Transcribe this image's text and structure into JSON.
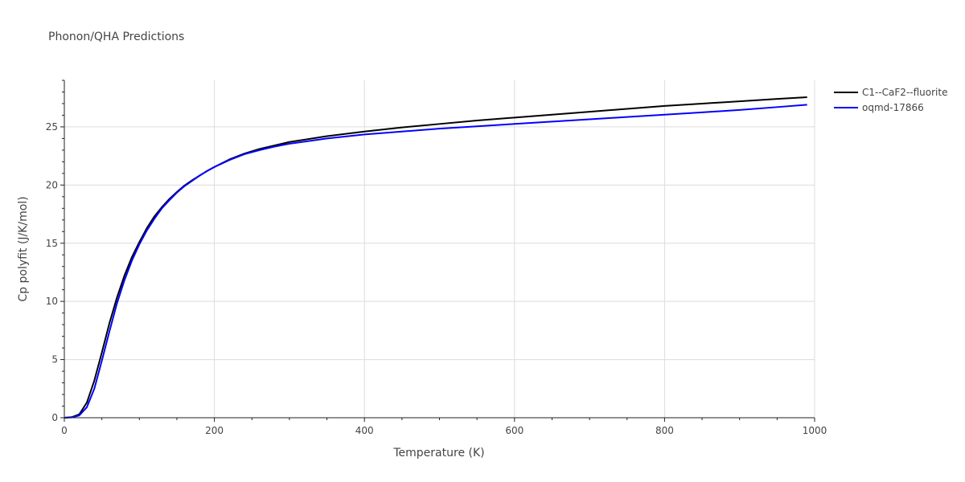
{
  "chart_data": {
    "type": "line",
    "title": "Phonon/QHA Predictions",
    "xlabel": "Temperature (K)",
    "ylabel": "Cp polyfit (J/K/mol)",
    "xlim": [
      0,
      1000
    ],
    "ylim": [
      0,
      29
    ],
    "xticks": [
      0,
      200,
      400,
      600,
      800,
      1000
    ],
    "yticks": [
      0,
      5,
      10,
      15,
      20,
      25
    ],
    "grid": true,
    "legend_position": "top-right",
    "series": [
      {
        "name": "C1--CaF2--fluorite",
        "color": "#000000",
        "x": [
          0,
          10,
          20,
          30,
          40,
          50,
          60,
          70,
          80,
          90,
          100,
          110,
          120,
          130,
          140,
          150,
          160,
          170,
          180,
          190,
          200,
          220,
          240,
          260,
          280,
          300,
          350,
          400,
          450,
          500,
          550,
          600,
          650,
          700,
          750,
          800,
          850,
          900,
          950,
          990
        ],
        "y": [
          0,
          0.05,
          0.3,
          1.3,
          3.2,
          5.6,
          8.1,
          10.3,
          12.2,
          13.8,
          15.1,
          16.3,
          17.3,
          18.1,
          18.8,
          19.4,
          19.95,
          20.4,
          20.8,
          21.2,
          21.55,
          22.2,
          22.7,
          23.1,
          23.4,
          23.7,
          24.2,
          24.6,
          24.95,
          25.25,
          25.55,
          25.8,
          26.05,
          26.3,
          26.55,
          26.8,
          27.0,
          27.2,
          27.4,
          27.55
        ]
      },
      {
        "name": "oqmd-17866",
        "color": "#0000ff",
        "x": [
          0,
          10,
          20,
          30,
          40,
          50,
          60,
          70,
          80,
          90,
          100,
          110,
          120,
          130,
          140,
          150,
          160,
          170,
          180,
          190,
          200,
          220,
          240,
          260,
          280,
          300,
          350,
          400,
          450,
          500,
          550,
          600,
          650,
          700,
          750,
          800,
          850,
          900,
          950,
          990
        ],
        "y": [
          0,
          0.03,
          0.2,
          0.9,
          2.5,
          4.9,
          7.4,
          9.8,
          11.8,
          13.5,
          14.9,
          16.1,
          17.1,
          18.0,
          18.7,
          19.35,
          19.9,
          20.35,
          20.8,
          21.2,
          21.55,
          22.15,
          22.65,
          23.0,
          23.3,
          23.55,
          24.0,
          24.35,
          24.6,
          24.85,
          25.05,
          25.25,
          25.45,
          25.65,
          25.85,
          26.05,
          26.25,
          26.45,
          26.7,
          26.9
        ]
      }
    ]
  }
}
